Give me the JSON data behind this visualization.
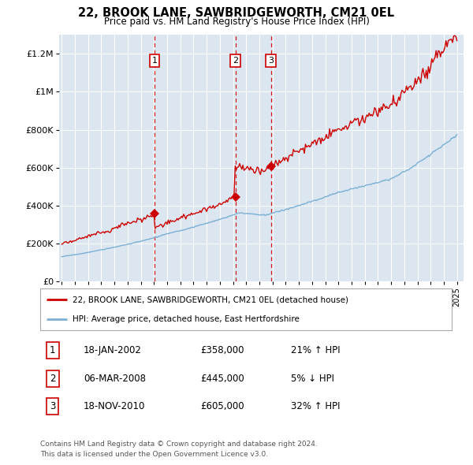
{
  "title": "22, BROOK LANE, SAWBRIDGEWORTH, CM21 0EL",
  "subtitle": "Price paid vs. HM Land Registry's House Price Index (HPI)",
  "legend_line1": "22, BROOK LANE, SAWBRIDGEWORTH, CM21 0EL (detached house)",
  "legend_line2": "HPI: Average price, detached house, East Hertfordshire",
  "footnote1": "Contains HM Land Registry data © Crown copyright and database right 2024.",
  "footnote2": "This data is licensed under the Open Government Licence v3.0.",
  "transactions": [
    {
      "num": 1,
      "date": "18-JAN-2002",
      "price": "£358,000",
      "change": "21% ↑ HPI",
      "x": 2002.05
    },
    {
      "num": 2,
      "date": "06-MAR-2008",
      "price": "£445,000",
      "change": "5% ↓ HPI",
      "x": 2008.18
    },
    {
      "num": 3,
      "date": "18-NOV-2010",
      "price": "£605,000",
      "change": "32% ↑ HPI",
      "x": 2010.88
    }
  ],
  "transaction_prices": [
    358000,
    445000,
    605000
  ],
  "red_color": "#cc0000",
  "blue_color": "#7bafd4",
  "plot_bg": "#dce6f1",
  "ylim": [
    0,
    1300000
  ],
  "xlim_start": 1994.8,
  "xlim_end": 2025.5,
  "yticks": [
    0,
    200000,
    400000,
    600000,
    800000,
    1000000,
    1200000
  ],
  "ylabels": [
    "£0",
    "£200K",
    "£400K",
    "£600K",
    "£800K",
    "£1M",
    "£1.2M"
  ]
}
